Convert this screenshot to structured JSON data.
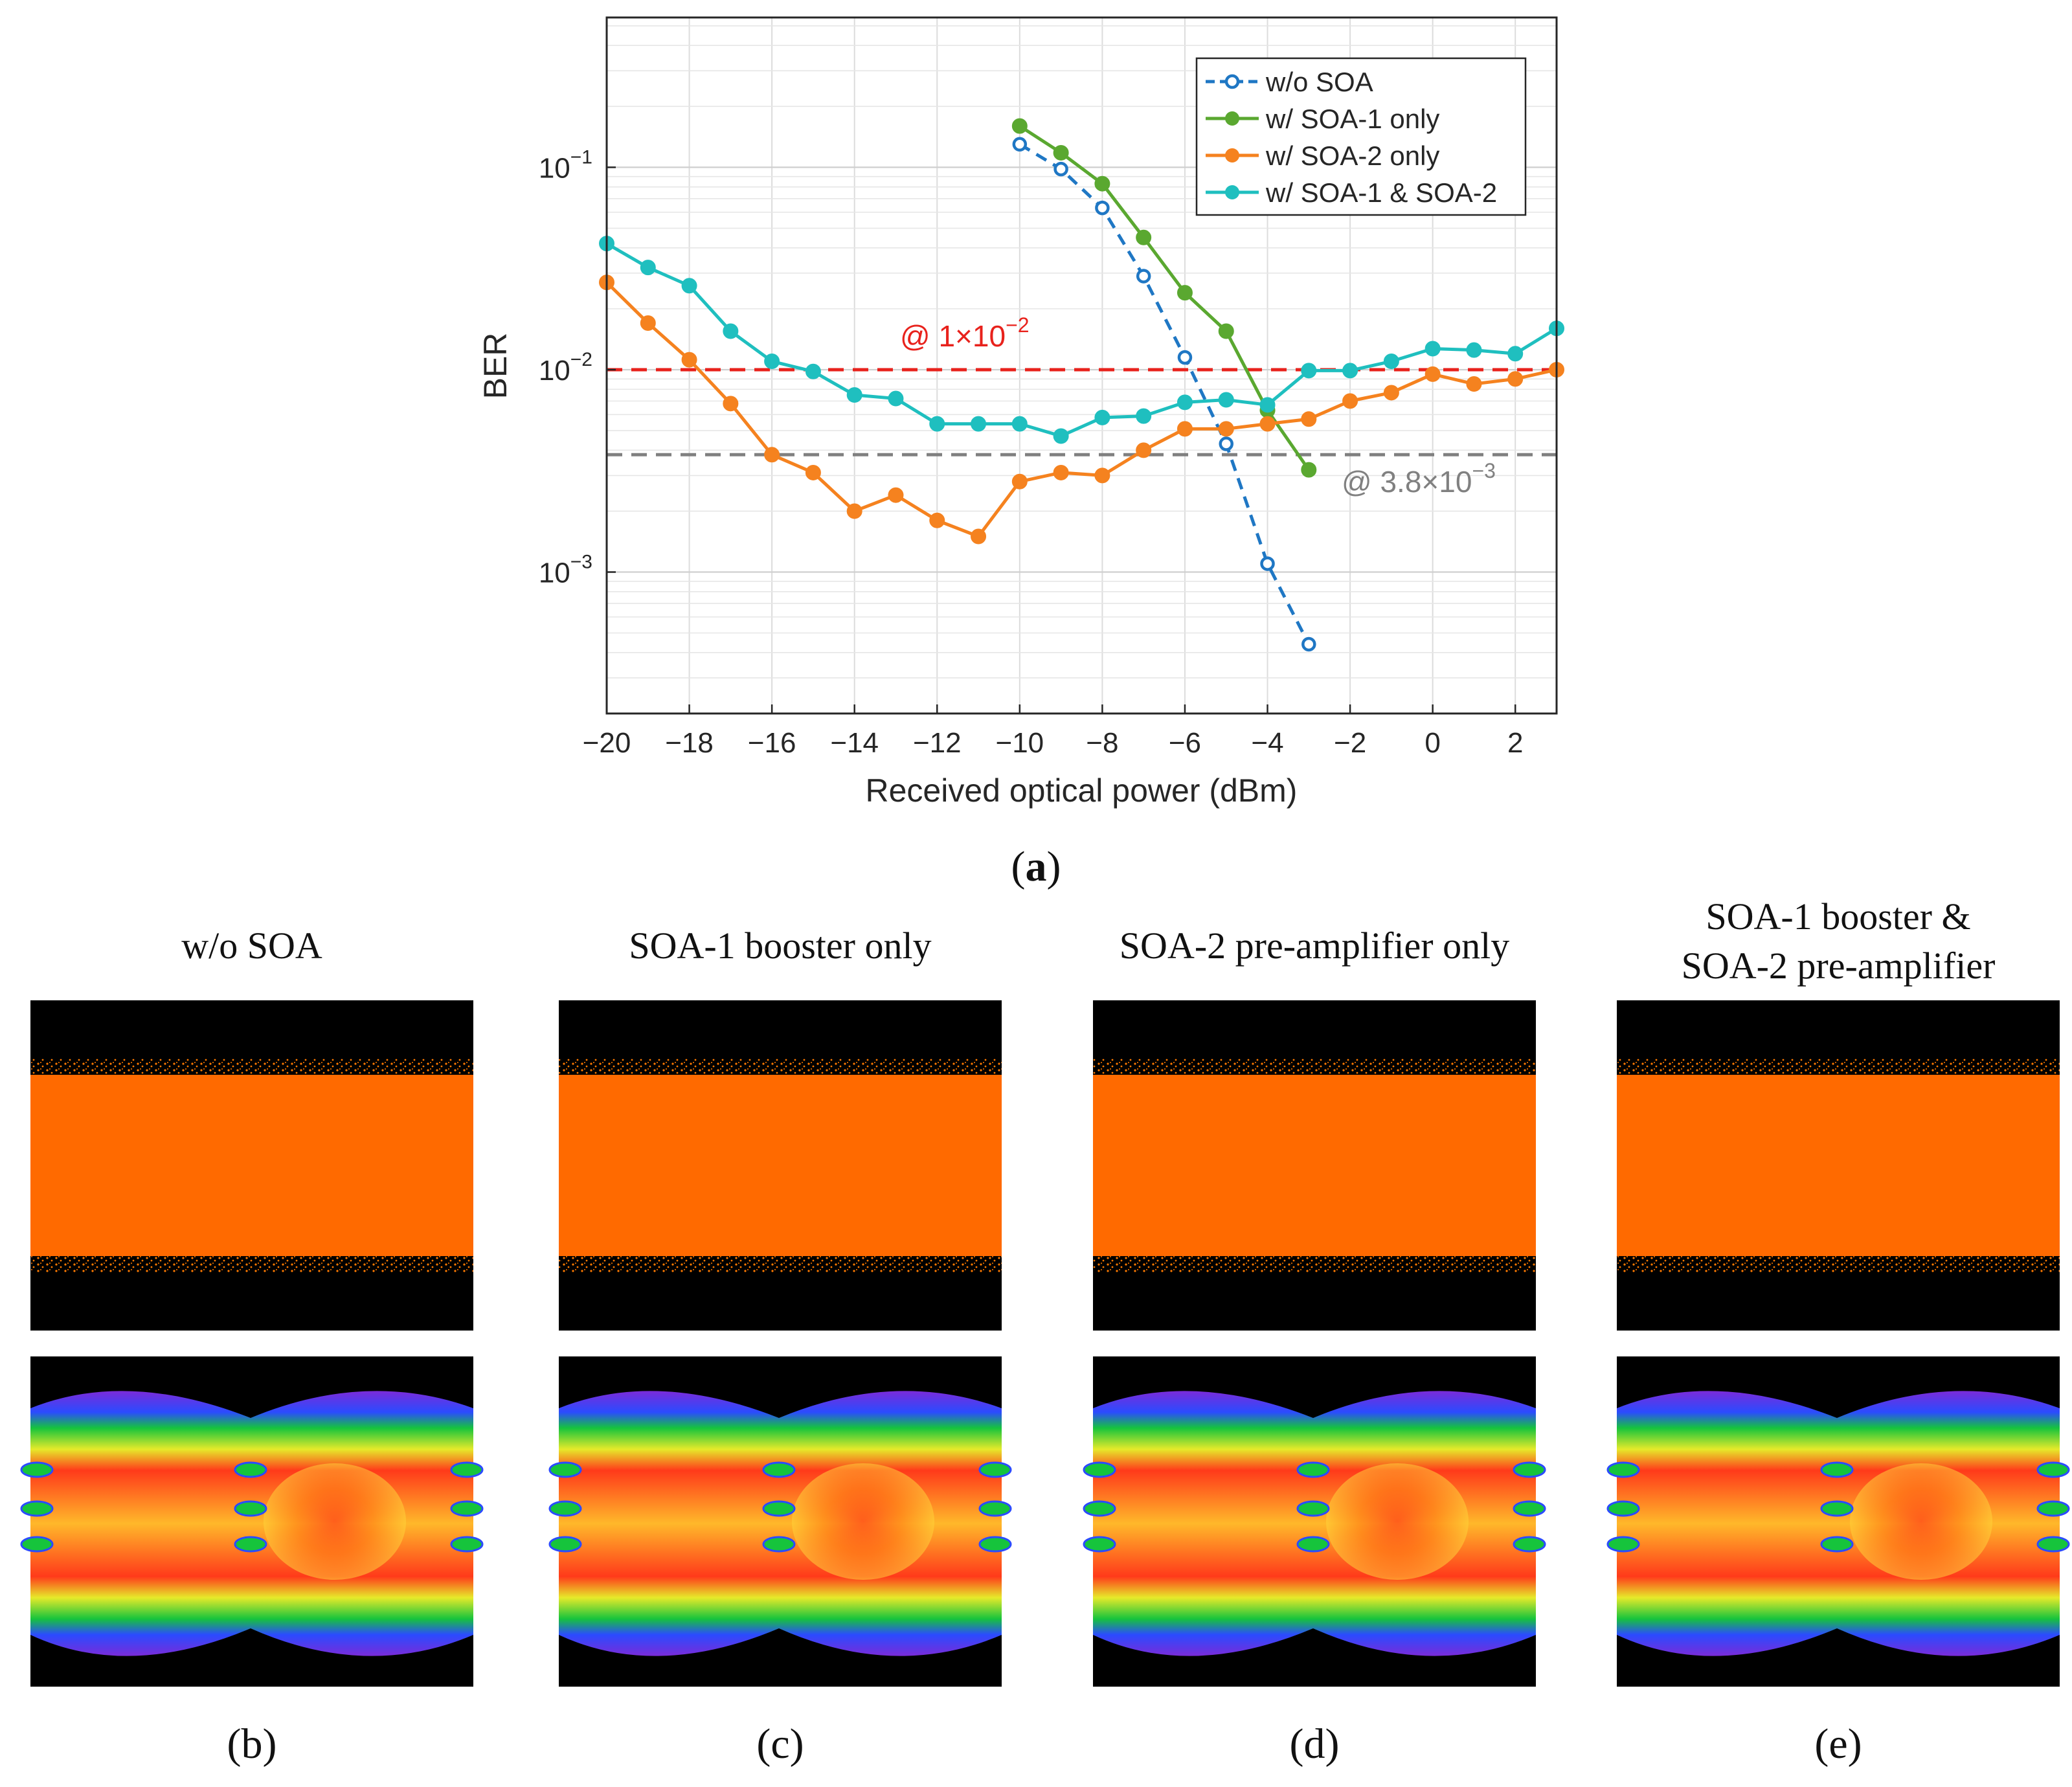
{
  "chart_data": {
    "type": "line",
    "panel_label": "(a)",
    "xlabel": "Received optical power (dBm)",
    "ylabel": "BER",
    "xlim": [
      -20,
      3
    ],
    "ylim": [
      0.0002,
      0.55
    ],
    "yscale": "log",
    "grid": true,
    "legend_position": "top-right",
    "xticks": [
      {
        "value": -20,
        "label": "−20"
      },
      {
        "value": -18,
        "label": "−18"
      },
      {
        "value": -16,
        "label": "−16"
      },
      {
        "value": -14,
        "label": "−14"
      },
      {
        "value": -12,
        "label": "−12"
      },
      {
        "value": -10,
        "label": "−10"
      },
      {
        "value": -8,
        "label": "−8"
      },
      {
        "value": -6,
        "label": "−6"
      },
      {
        "value": -4,
        "label": "−4"
      },
      {
        "value": -2,
        "label": "−2"
      },
      {
        "value": 0,
        "label": "0"
      },
      {
        "value": 2,
        "label": "2"
      }
    ],
    "yticks": [
      {
        "value": 0.1,
        "base": "10",
        "exp": "−1"
      },
      {
        "value": 0.01,
        "base": "10",
        "exp": "−2"
      },
      {
        "value": 0.001,
        "base": "10",
        "exp": "−3"
      }
    ],
    "series": [
      {
        "name": "w/o SOA",
        "color": "#1f77c4",
        "line": "dashed",
        "marker": "open-circle",
        "x": [
          -10,
          -9,
          -8,
          -7,
          -6,
          -5,
          -4,
          -3
        ],
        "y": [
          0.13,
          0.098,
          0.063,
          0.029,
          0.0115,
          0.0043,
          0.0011,
          0.00044
        ]
      },
      {
        "name": "w/ SOA-1 only",
        "color": "#5aa830",
        "line": "solid",
        "marker": "filled-circle",
        "x": [
          -10,
          -9,
          -8,
          -7,
          -6,
          -5,
          -4,
          -3
        ],
        "y": [
          0.16,
          0.118,
          0.083,
          0.045,
          0.024,
          0.0155,
          0.0063,
          0.0032
        ]
      },
      {
        "name": "w/ SOA-2 only",
        "color": "#f5821f",
        "line": "solid",
        "marker": "filled-circle",
        "x": [
          -20,
          -19,
          -18,
          -17,
          -16,
          -15,
          -14,
          -13,
          -12,
          -11,
          -10,
          -9,
          -8,
          -7,
          -6,
          -5,
          -4,
          -3,
          -2,
          -1,
          0,
          1,
          2,
          3
        ],
        "y": [
          0.027,
          0.017,
          0.0112,
          0.0068,
          0.0038,
          0.0031,
          0.002,
          0.0024,
          0.0018,
          0.0015,
          0.0028,
          0.0031,
          0.003,
          0.004,
          0.0051,
          0.0051,
          0.0054,
          0.0057,
          0.007,
          0.0077,
          0.0095,
          0.0085,
          0.009,
          0.01
        ]
      },
      {
        "name": "w/ SOA-1 & SOA-2",
        "color": "#1fbfbf",
        "line": "solid",
        "marker": "filled-circle",
        "x": [
          -20,
          -19,
          -18,
          -17,
          -16,
          -15,
          -14,
          -13,
          -12,
          -11,
          -10,
          -9,
          -8,
          -7,
          -6,
          -5,
          -4,
          -3,
          -2,
          -1,
          0,
          1,
          2,
          3
        ],
        "y": [
          0.042,
          0.032,
          0.026,
          0.0155,
          0.011,
          0.0098,
          0.0075,
          0.0072,
          0.0054,
          0.0054,
          0.0054,
          0.0047,
          0.0058,
          0.0059,
          0.0069,
          0.0071,
          0.0067,
          0.0099,
          0.0099,
          0.011,
          0.0127,
          0.0125,
          0.012,
          0.016
        ]
      }
    ],
    "thresholds": [
      {
        "value": 0.01,
        "color": "#e8221c",
        "label_prefix": "@ 1×10",
        "label_exp": "−2"
      },
      {
        "value": 0.0038,
        "color": "#808080",
        "label_prefix": "@ 3.8×10",
        "label_exp": "−3"
      }
    ]
  },
  "eye_panels": [
    {
      "title": [
        "w/o SOA"
      ],
      "label": "(b)"
    },
    {
      "title": [
        "SOA-1 booster only"
      ],
      "label": "(c)"
    },
    {
      "title": [
        "SOA-2 pre-amplifier only"
      ],
      "label": "(d)"
    },
    {
      "title": [
        "SOA-1 booster &",
        "SOA-2 pre-amplifier"
      ],
      "label": "(e)"
    }
  ]
}
